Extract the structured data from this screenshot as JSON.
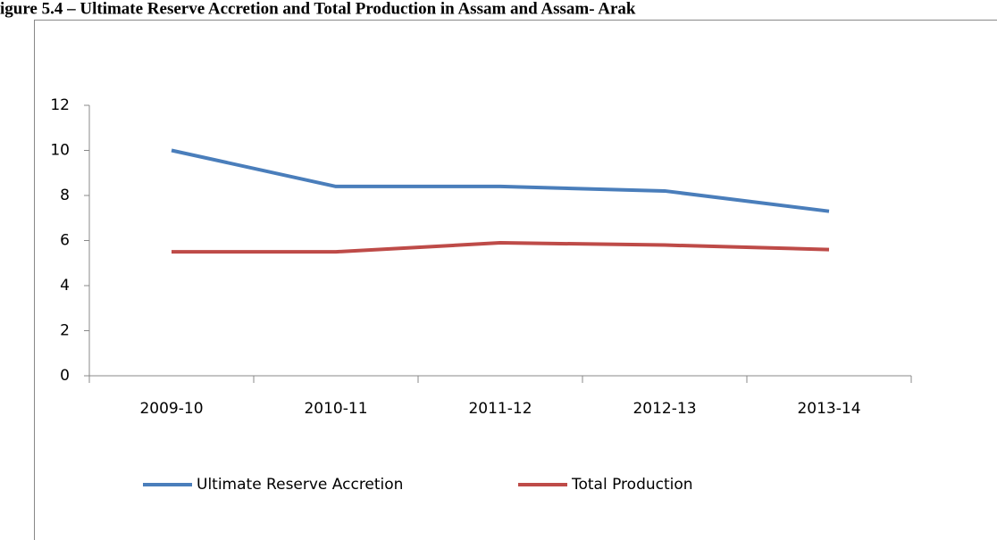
{
  "chart_data": {
    "type": "line",
    "title": "igure 5.4 – Ultimate Reserve Accretion and Total Production in Assam and Assam- Arak",
    "categories": [
      "2009-10",
      "2010-11",
      "2011-12",
      "2012-13",
      "2013-14"
    ],
    "series": [
      {
        "name": "Ultimate Reserve Accretion",
        "color": "#4a7ebb",
        "values": [
          10,
          8.4,
          8.4,
          8.2,
          7.3
        ]
      },
      {
        "name": "Total Production",
        "color": "#be4b48",
        "values": [
          5.5,
          5.5,
          5.9,
          5.8,
          5.6
        ]
      }
    ],
    "ylim": [
      0,
      12
    ],
    "yticks": [
      0,
      2,
      4,
      6,
      8,
      10,
      12
    ],
    "grid": false,
    "legend": "bottom"
  }
}
